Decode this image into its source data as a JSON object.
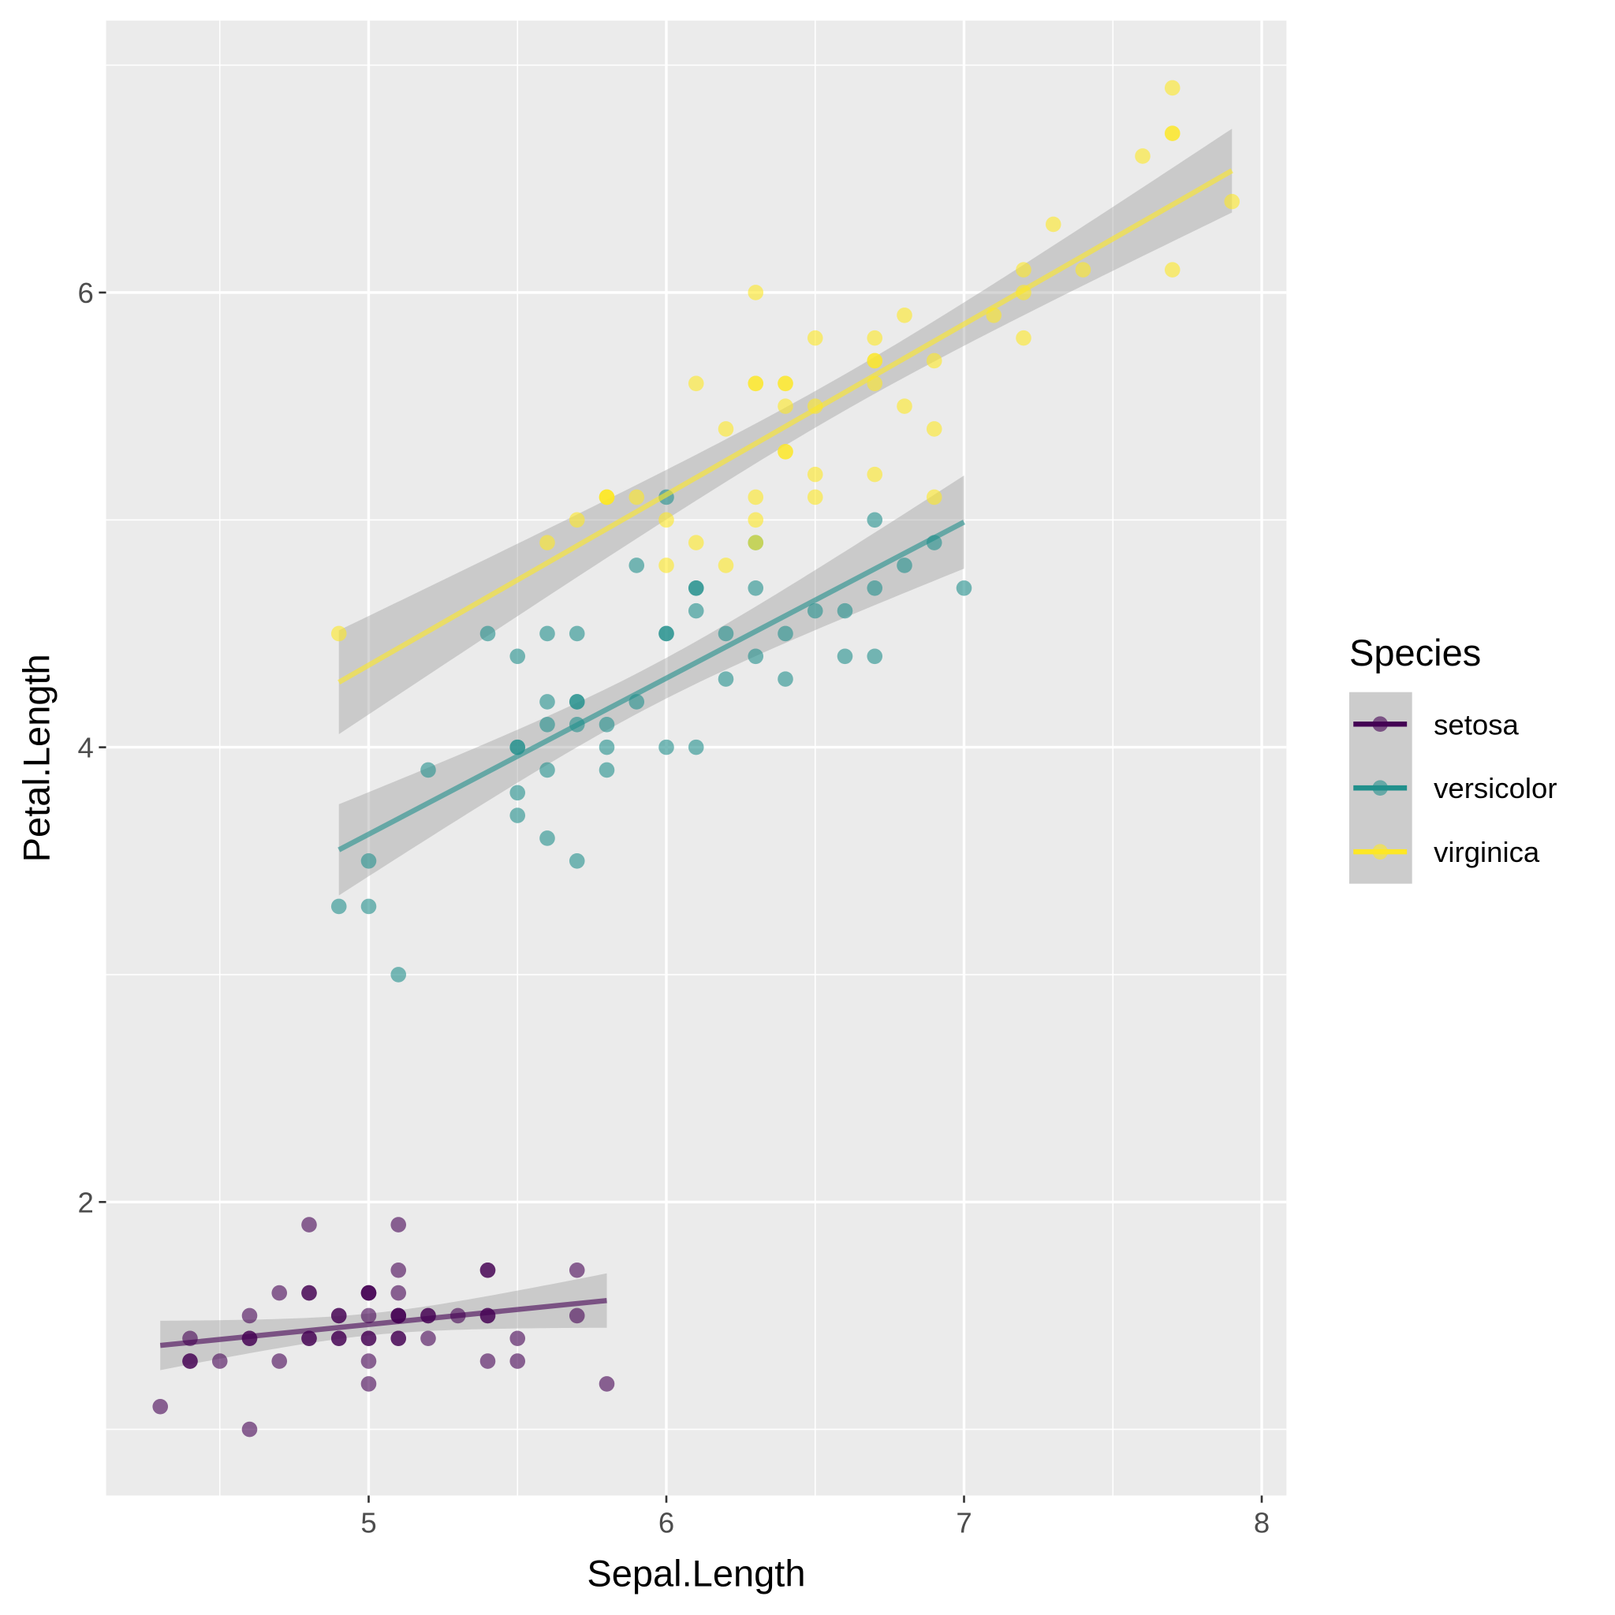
{
  "chart_data": {
    "type": "scatter",
    "xlabel": "Sepal.Length",
    "ylabel": "Petal.Length",
    "xlim": [
      4.118,
      8.083
    ],
    "ylim": [
      0.709,
      7.196
    ],
    "x_ticks": [
      5,
      6,
      7,
      8
    ],
    "y_ticks": [
      2,
      4,
      6
    ],
    "grid": true,
    "point_alpha": 0.6,
    "smooth": {
      "method": "lm",
      "se": true
    },
    "legend": {
      "title": "Species",
      "position": "right"
    },
    "series": [
      {
        "name": "setosa",
        "color": "#440154",
        "x": [
          5.1,
          4.9,
          4.7,
          4.6,
          5.0,
          5.4,
          4.6,
          5.0,
          4.4,
          4.9,
          5.4,
          4.8,
          4.8,
          4.3,
          5.8,
          5.7,
          5.4,
          5.1,
          5.7,
          5.1,
          5.4,
          5.1,
          4.6,
          5.1,
          4.8,
          5.0,
          5.0,
          5.2,
          5.2,
          4.7,
          4.8,
          5.4,
          5.2,
          5.5,
          4.9,
          5.0,
          5.5,
          4.9,
          4.4,
          5.1,
          5.0,
          4.5,
          4.4,
          5.0,
          5.1,
          4.8,
          5.1,
          4.6,
          5.3,
          5.0
        ],
        "y": [
          1.4,
          1.4,
          1.3,
          1.5,
          1.4,
          1.7,
          1.4,
          1.5,
          1.4,
          1.5,
          1.5,
          1.6,
          1.4,
          1.1,
          1.2,
          1.5,
          1.3,
          1.4,
          1.7,
          1.5,
          1.7,
          1.5,
          1.0,
          1.7,
          1.9,
          1.6,
          1.6,
          1.5,
          1.4,
          1.6,
          1.6,
          1.5,
          1.5,
          1.4,
          1.5,
          1.2,
          1.3,
          1.4,
          1.3,
          1.5,
          1.3,
          1.3,
          1.3,
          1.6,
          1.9,
          1.4,
          1.6,
          1.4,
          1.5,
          1.4
        ]
      },
      {
        "name": "versicolor",
        "color": "#21908C",
        "x": [
          7.0,
          6.4,
          6.9,
          5.5,
          6.5,
          5.7,
          6.3,
          4.9,
          6.6,
          5.2,
          5.0,
          5.9,
          6.0,
          6.1,
          5.6,
          6.7,
          5.6,
          5.8,
          6.2,
          5.6,
          5.9,
          6.1,
          6.3,
          6.1,
          6.4,
          6.6,
          6.8,
          6.7,
          6.0,
          5.7,
          5.5,
          5.5,
          5.8,
          6.0,
          5.4,
          6.0,
          6.7,
          6.3,
          5.6,
          5.5,
          5.5,
          6.1,
          5.8,
          5.0,
          5.6,
          5.7,
          5.7,
          6.2,
          5.1,
          5.7
        ],
        "y": [
          4.7,
          4.5,
          4.9,
          4.0,
          4.6,
          4.5,
          4.7,
          3.3,
          4.6,
          3.9,
          3.5,
          4.2,
          4.0,
          4.7,
          3.6,
          4.4,
          4.5,
          4.1,
          4.5,
          3.9,
          4.8,
          4.0,
          4.9,
          4.7,
          4.3,
          4.4,
          4.8,
          5.0,
          4.5,
          3.5,
          3.8,
          3.7,
          3.9,
          5.1,
          4.5,
          4.5,
          4.7,
          4.4,
          4.1,
          4.0,
          4.4,
          4.6,
          4.0,
          3.3,
          4.2,
          4.2,
          4.2,
          4.3,
          3.0,
          4.1
        ]
      },
      {
        "name": "virginica",
        "color": "#FDE725",
        "x": [
          6.3,
          5.8,
          7.1,
          6.3,
          6.5,
          7.6,
          4.9,
          7.3,
          6.7,
          7.2,
          6.5,
          6.4,
          6.8,
          5.7,
          5.8,
          6.4,
          6.5,
          7.7,
          7.7,
          6.0,
          6.9,
          5.6,
          7.7,
          6.3,
          6.7,
          7.2,
          6.2,
          6.1,
          6.4,
          7.2,
          7.4,
          7.9,
          6.4,
          6.3,
          6.1,
          7.7,
          6.3,
          6.4,
          6.0,
          6.9,
          6.7,
          6.9,
          5.8,
          6.8,
          6.7,
          6.7,
          6.3,
          6.5,
          6.2,
          5.9
        ],
        "y": [
          6.0,
          5.1,
          5.9,
          5.6,
          5.8,
          6.6,
          4.5,
          6.3,
          5.8,
          6.1,
          5.1,
          5.3,
          5.5,
          5.0,
          5.1,
          5.3,
          5.5,
          6.7,
          6.9,
          5.0,
          5.7,
          4.9,
          6.7,
          4.9,
          5.7,
          6.0,
          4.8,
          4.9,
          5.6,
          5.8,
          6.1,
          6.4,
          5.6,
          5.1,
          5.6,
          6.1,
          5.6,
          5.5,
          4.8,
          5.4,
          5.6,
          5.1,
          5.1,
          5.9,
          5.7,
          5.2,
          5.0,
          5.2,
          5.4,
          5.1
        ]
      }
    ]
  }
}
